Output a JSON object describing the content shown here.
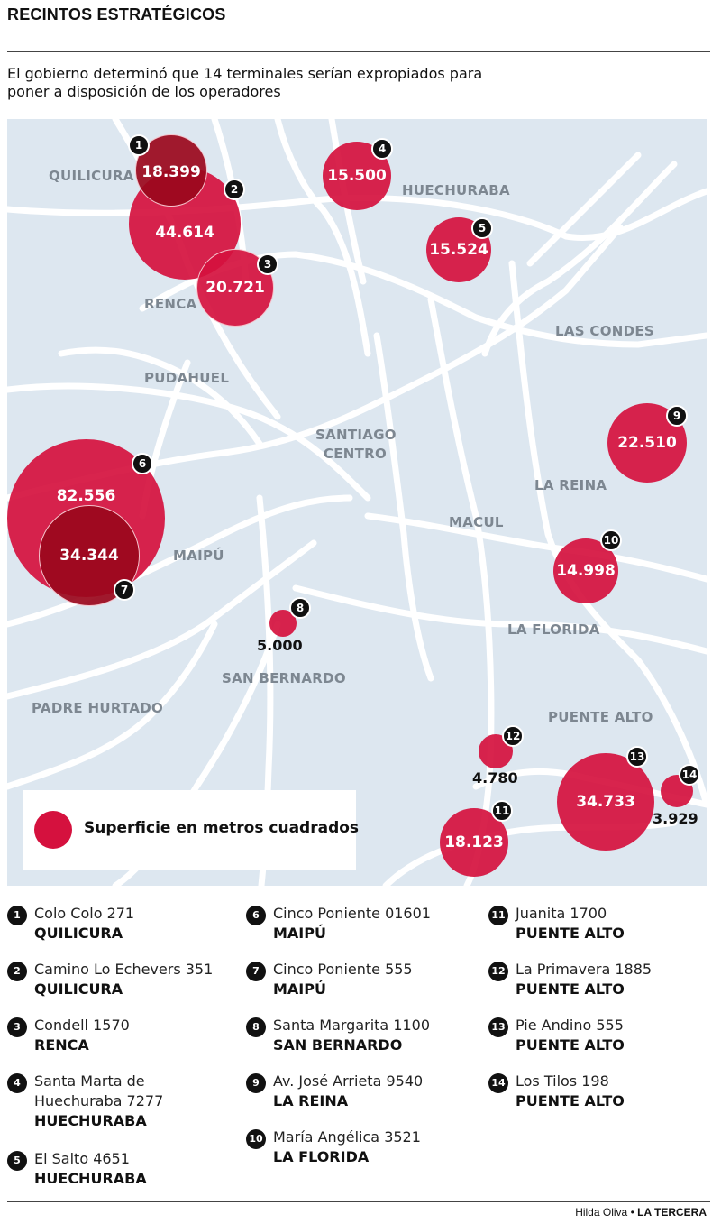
{
  "header": {
    "title": "RECINTOS ESTRATÉGICOS",
    "subtitle": "El gobierno determinó que 14 terminales serían expropiados para poner a disposición de los operadores"
  },
  "colors": {
    "bubble": "#d5113e",
    "bubble_overlap": "#9a081c",
    "map_bg": "#dde7f0",
    "roads": "#ffffff",
    "badge": "#111111"
  },
  "map": {
    "districts": {
      "quilicura": "QUILICURA",
      "huechuraba": "HUECHURABA",
      "renca": "RENCA",
      "las_condes": "LAS CONDES",
      "pudahuel": "PUDAHUEL",
      "santiago_centro_1": "SANTIAGO",
      "santiago_centro_2": "CENTRO",
      "la_reina": "LA REINA",
      "macul": "MACUL",
      "maipu": "MAIPÚ",
      "la_florida": "LA FLORIDA",
      "san_bernardo": "SAN BERNARDO",
      "padre_hurtado": "PADRE HURTADO",
      "puente_alto": "PUENTE ALTO"
    },
    "sites": [
      {
        "n": "1",
        "value": "18.399",
        "area_m2": 18399
      },
      {
        "n": "2",
        "value": "44.614",
        "area_m2": 44614
      },
      {
        "n": "3",
        "value": "20.721",
        "area_m2": 20721
      },
      {
        "n": "4",
        "value": "15.500",
        "area_m2": 15500
      },
      {
        "n": "5",
        "value": "15.524",
        "area_m2": 15524
      },
      {
        "n": "6",
        "value": "82.556",
        "area_m2": 82556
      },
      {
        "n": "7",
        "value": "34.344",
        "area_m2": 34344
      },
      {
        "n": "8",
        "value": "5.000",
        "area_m2": 5000
      },
      {
        "n": "9",
        "value": "22.510",
        "area_m2": 22510
      },
      {
        "n": "10",
        "value": "14.998",
        "area_m2": 14998
      },
      {
        "n": "11",
        "value": "18.123",
        "area_m2": 18123
      },
      {
        "n": "12",
        "value": "4.780",
        "area_m2": 4780
      },
      {
        "n": "13",
        "value": "34.733",
        "area_m2": 34733
      },
      {
        "n": "14",
        "value": "3.929",
        "area_m2": 3929
      }
    ],
    "legend": "Superficie en metros cuadrados"
  },
  "list": [
    {
      "n": "1",
      "address": "Colo Colo 271",
      "commune": "QUILICURA"
    },
    {
      "n": "2",
      "address": "Camino Lo Echevers 351",
      "commune": "QUILICURA"
    },
    {
      "n": "3",
      "address": "Condell 1570",
      "commune": "RENCA"
    },
    {
      "n": "4",
      "address": "Santa Marta de Huechuraba 7277",
      "commune": "HUECHURABA"
    },
    {
      "n": "5",
      "address": "El Salto 4651",
      "commune": "HUECHURABA"
    },
    {
      "n": "6",
      "address": "Cinco Poniente 01601",
      "commune": "MAIPÚ"
    },
    {
      "n": "7",
      "address": "Cinco Poniente 555",
      "commune": "MAIPÚ"
    },
    {
      "n": "8",
      "address": "Santa Margarita 1100",
      "commune": "SAN BERNARDO"
    },
    {
      "n": "9",
      "address": "Av. José Arrieta 9540",
      "commune": "LA REINA"
    },
    {
      "n": "10",
      "address": "María Angélica 3521",
      "commune": "LA FLORIDA"
    },
    {
      "n": "11",
      "address": "Juanita 1700",
      "commune": "PUENTE ALTO"
    },
    {
      "n": "12",
      "address": "La Primavera 1885",
      "commune": "PUENTE ALTO"
    },
    {
      "n": "13",
      "address": "Pie Andino 555",
      "commune": "PUENTE ALTO"
    },
    {
      "n": "14",
      "address": "Los Tilos 198",
      "commune": "PUENTE ALTO"
    }
  ],
  "credit": {
    "author": "Hilda Oliva",
    "separator": "•",
    "brand": "LA TERCERA"
  }
}
